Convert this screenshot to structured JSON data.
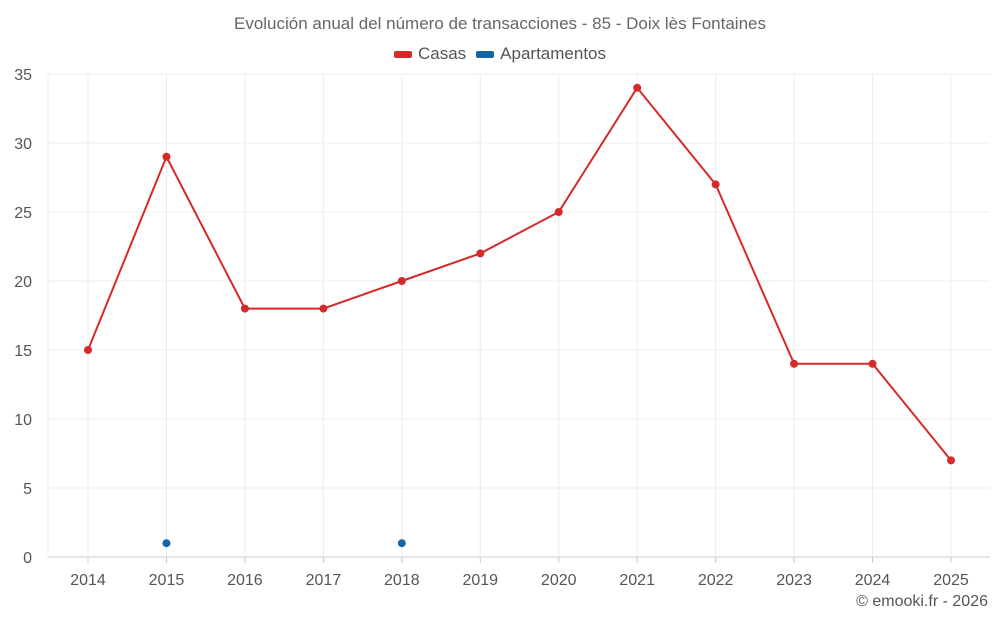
{
  "chart_data": {
    "type": "line",
    "title": "Evolución anual del número de transacciones - 85 - Doix lès Fontaines",
    "categories": [
      "2014",
      "2015",
      "2016",
      "2017",
      "2018",
      "2019",
      "2020",
      "2021",
      "2022",
      "2023",
      "2024",
      "2025"
    ],
    "series": [
      {
        "name": "Casas",
        "color": "#d42a2a",
        "values": [
          15,
          29,
          18,
          18,
          20,
          22,
          25,
          34,
          27,
          14,
          14,
          7
        ],
        "connect": true
      },
      {
        "name": "Apartamentos",
        "color": "#1566a6",
        "values": [
          null,
          1,
          null,
          null,
          1,
          null,
          null,
          null,
          null,
          null,
          null,
          null
        ],
        "connect": false
      }
    ],
    "ylim": [
      0,
      35
    ],
    "yticks": [
      0,
      5,
      10,
      15,
      20,
      25,
      30,
      35
    ],
    "xlabel": "",
    "ylabel": "",
    "grid": true,
    "legend": "top-center"
  },
  "credit": "© emooki.fr - 2026"
}
